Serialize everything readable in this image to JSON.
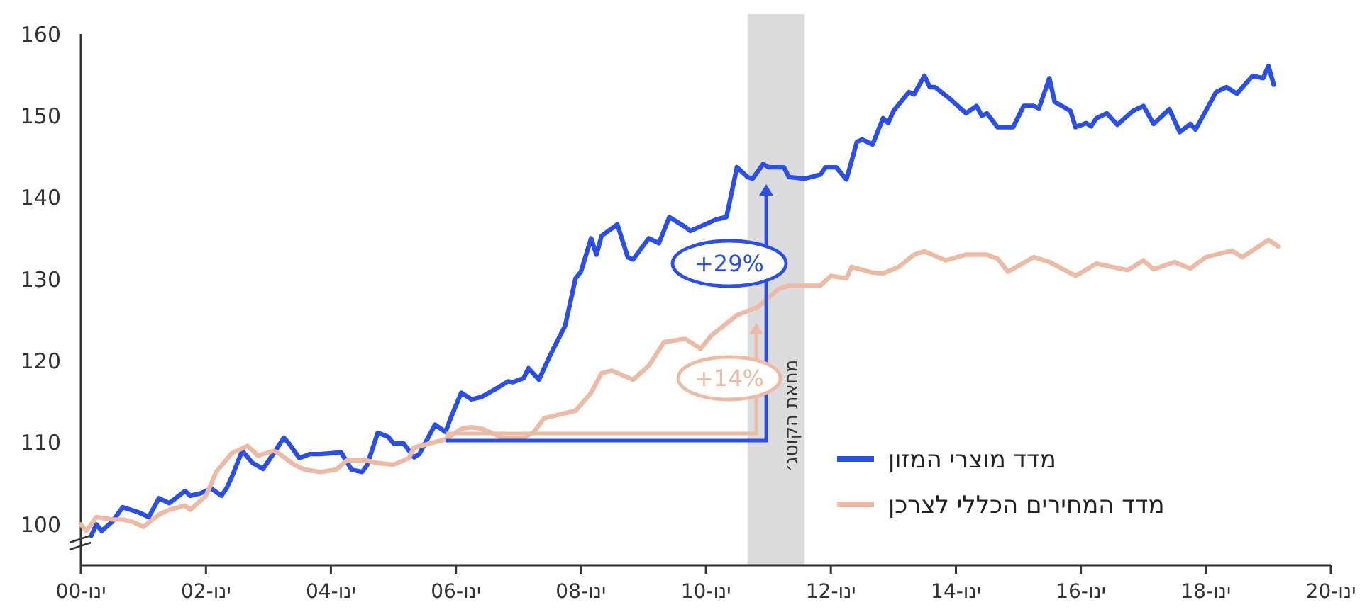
{
  "chart_data": {
    "type": "line",
    "legend": "bottom right",
    "line_style": "solid",
    "marker": "none",
    "grid": false,
    "xlim": [
      "2000-01",
      "2020-01"
    ],
    "ylim": [
      95,
      160
    ],
    "xticks": [
      {
        "value": "2000-01",
        "label": "ינו-00"
      },
      {
        "value": "2002-01",
        "label": "ינו-02"
      },
      {
        "value": "2004-01",
        "label": "ינו-04"
      },
      {
        "value": "2006-01",
        "label": "ינו-06"
      },
      {
        "value": "2008-01",
        "label": "ינו-08"
      },
      {
        "value": "2010-01",
        "label": "ינו-10"
      },
      {
        "value": "2012-01",
        "label": "ינו-12"
      },
      {
        "value": "2014-01",
        "label": "ינו-14"
      },
      {
        "value": "2016-01",
        "label": "ינו-16"
      },
      {
        "value": "2018-01",
        "label": "ינו-18"
      },
      {
        "value": "2020-01",
        "label": "ינו-20"
      }
    ],
    "yticks": [
      100,
      110,
      120,
      130,
      140,
      150,
      160
    ],
    "bands": [
      {
        "axis": "x",
        "from": "2010-09",
        "to": "2011-08",
        "label": "מחאת הקוטג׳",
        "color": "#dcdcde"
      }
    ],
    "annotations": [
      "+29%",
      "+14%"
    ],
    "series": [
      {
        "name": "מדד מוצרי המזון",
        "color": "#2b4ee6",
        "x": [
          "2000-03",
          "2000-04",
          "2000-05",
          "2000-07",
          "2000-09",
          "2000-12",
          "2001-02",
          "2001-04",
          "2001-06",
          "2001-09",
          "2001-10",
          "2001-12",
          "2002-02",
          "2002-04",
          "2002-05",
          "2002-06",
          "2002-08",
          "2002-10",
          "2002-12",
          "2003-02",
          "2003-04",
          "2003-05",
          "2003-07",
          "2003-09",
          "2003-11",
          "2004-03",
          "2004-05",
          "2004-07",
          "2004-08",
          "2004-10",
          "2004-12",
          "2005-01",
          "2005-03",
          "2005-05",
          "2005-06",
          "2005-09",
          "2005-11",
          "2005-12",
          "2006-02",
          "2006-04",
          "2006-06",
          "2006-09",
          "2006-11",
          "2006-12",
          "2007-02",
          "2007-03",
          "2007-05",
          "2007-07",
          "2007-10",
          "2007-12",
          "2008-01",
          "2008-03",
          "2008-04",
          "2008-05",
          "2008-08",
          "2008-10",
          "2008-11",
          "2009-02",
          "2009-04",
          "2009-06",
          "2009-09",
          "2009-10",
          "2010-03",
          "2010-05",
          "2010-07",
          "2010-09",
          "2010-10",
          "2010-12",
          "2011-01",
          "2011-04",
          "2011-05",
          "2011-08",
          "2011-11",
          "2011-12",
          "2012-02",
          "2012-04",
          "2012-06",
          "2012-07",
          "2012-09",
          "2012-11",
          "2012-12",
          "2013-01",
          "2013-04",
          "2013-05",
          "2013-07",
          "2013-08",
          "2013-09",
          "2013-12",
          "2014-03",
          "2014-05",
          "2014-06",
          "2014-07",
          "2014-09",
          "2014-12",
          "2015-02",
          "2015-04",
          "2015-05",
          "2015-07",
          "2015-08",
          "2015-11",
          "2015-12",
          "2016-02",
          "2016-03",
          "2016-04",
          "2016-06",
          "2016-08",
          "2016-11",
          "2017-01",
          "2017-03",
          "2017-06",
          "2017-08",
          "2017-10",
          "2017-11",
          "2018-03",
          "2018-05",
          "2018-07",
          "2018-10",
          "2018-12",
          "2019-01",
          "2019-02"
        ],
        "values": [
          98.6,
          100,
          99.2,
          100.3,
          102.1,
          101.5,
          100.9,
          103.2,
          102.6,
          104.1,
          103.5,
          103.8,
          104.4,
          103.5,
          104.4,
          105.8,
          109,
          107.5,
          106.8,
          108.7,
          110.6,
          109.9,
          108.1,
          108.6,
          108.6,
          108.8,
          106.7,
          106.4,
          107.3,
          111.2,
          110.7,
          109.9,
          109.9,
          108.2,
          108.6,
          112.2,
          111.3,
          113,
          116.1,
          115.3,
          115.6,
          116.7,
          117.5,
          117.4,
          117.9,
          119.1,
          117.7,
          120.5,
          124.3,
          130.1,
          130.9,
          135,
          133,
          135.3,
          136.7,
          132.7,
          132.4,
          135,
          134.4,
          137.6,
          136.4,
          135.9,
          137.3,
          137.6,
          143.7,
          142.5,
          142.3,
          144.1,
          143.7,
          143.7,
          142.5,
          142.3,
          142.8,
          143.7,
          143.7,
          142.2,
          146.8,
          147.1,
          146.5,
          149.7,
          149.1,
          150.6,
          152.9,
          152.6,
          154.9,
          153.5,
          153.5,
          152,
          150.3,
          151.2,
          150,
          150.3,
          148.6,
          148.6,
          151.2,
          151.2,
          150.9,
          154.6,
          151.7,
          150.6,
          148.6,
          149.1,
          148.7,
          149.7,
          150.3,
          148.9,
          150.6,
          151.2,
          149,
          150.8,
          148,
          149,
          148.3,
          152.9,
          153.5,
          152.7,
          154.9,
          154.6,
          156.1,
          153.8
        ]
      },
      {
        "name": "מדד המחירים הכללי לצרכן",
        "color": "#ebbba6",
        "x": [
          "2000-01",
          "2000-02",
          "2000-04",
          "2000-07",
          "2000-09",
          "2000-11",
          "2001-01",
          "2001-04",
          "2001-06",
          "2001-09",
          "2001-10",
          "2002-01",
          "2002-03",
          "2002-06",
          "2002-09",
          "2002-11",
          "2003-02",
          "2003-03",
          "2003-06",
          "2003-08",
          "2003-11",
          "2004-02",
          "2004-04",
          "2004-08",
          "2004-10",
          "2005-01",
          "2005-04",
          "2005-05",
          "2005-08",
          "2005-11",
          "2006-02",
          "2006-04",
          "2006-06",
          "2006-10",
          "2007-02",
          "2007-04",
          "2007-06",
          "2007-08",
          "2007-12",
          "2008-03",
          "2008-05",
          "2008-07",
          "2008-11",
          "2009-02",
          "2009-05",
          "2009-09",
          "2009-12",
          "2010-02",
          "2010-07",
          "2010-11",
          "2011-03",
          "2011-05",
          "2011-09",
          "2011-11",
          "2012-01",
          "2012-04",
          "2012-05",
          "2012-09",
          "2012-11",
          "2013-02",
          "2013-05",
          "2013-07",
          "2013-11",
          "2014-03",
          "2014-07",
          "2014-09",
          "2014-11",
          "2015-04",
          "2015-07",
          "2015-12",
          "2016-04",
          "2016-07",
          "2016-10",
          "2017-01",
          "2017-03",
          "2017-07",
          "2017-10",
          "2018-01",
          "2018-06",
          "2018-08",
          "2018-10",
          "2019-01",
          "2019-03"
        ],
        "values": [
          100,
          99.2,
          100.9,
          100.6,
          100.6,
          100.3,
          99.7,
          101.2,
          101.8,
          102.3,
          101.8,
          103.5,
          106.4,
          108.7,
          109.6,
          108.4,
          109,
          108.7,
          107.3,
          106.7,
          106.4,
          106.7,
          107.8,
          107.8,
          107.5,
          107.3,
          108.1,
          109.4,
          109.9,
          110.4,
          111.7,
          111.9,
          111.7,
          110.6,
          110.6,
          111.3,
          113,
          113.3,
          113.9,
          116.1,
          118.5,
          118.8,
          117.7,
          119.4,
          122.3,
          122.7,
          121.5,
          123.1,
          125.6,
          126.6,
          128.8,
          129.2,
          129.2,
          129.2,
          130.4,
          130.1,
          131.5,
          130.8,
          130.7,
          131.5,
          133,
          133.4,
          132.3,
          133,
          133,
          132.5,
          130.9,
          132.7,
          132.1,
          130.4,
          131.9,
          131.5,
          131.1,
          132.3,
          131.2,
          132.1,
          131.3,
          132.7,
          133.5,
          132.7,
          133.5,
          134.8,
          134
        ]
      }
    ]
  }
}
